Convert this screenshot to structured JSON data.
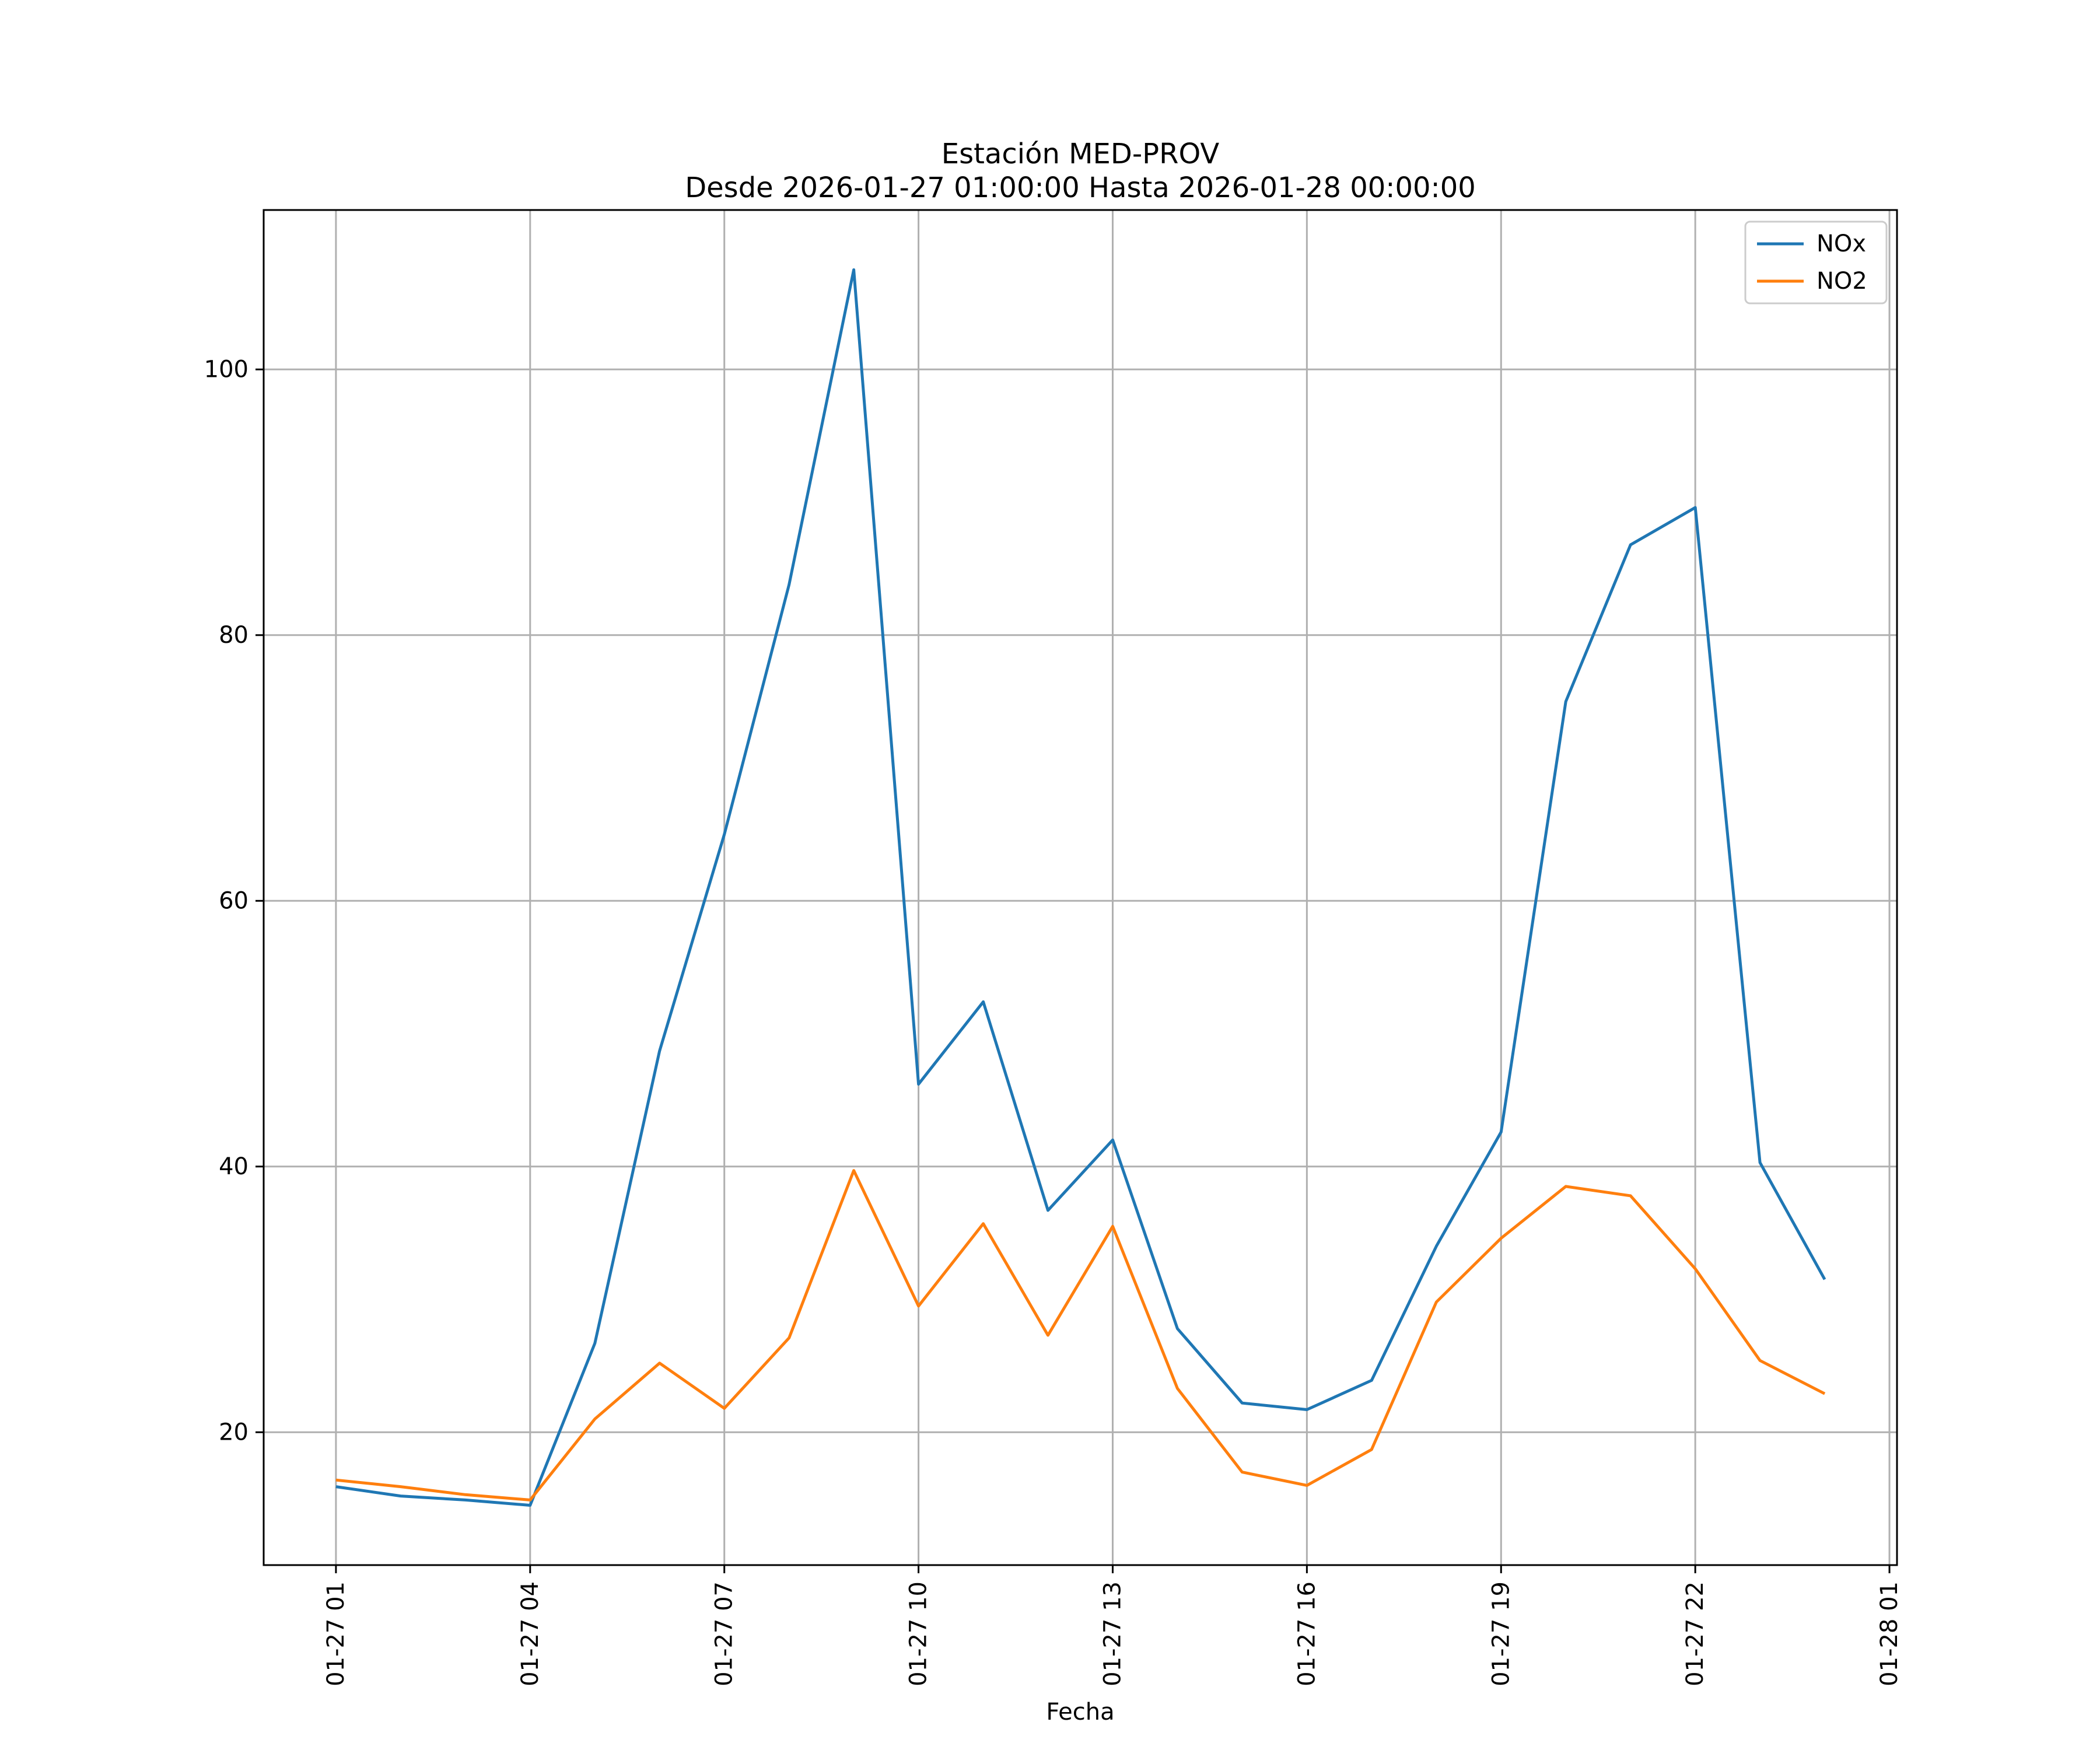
{
  "chart_data": {
    "type": "line",
    "title": "Estación MED-PROV",
    "subtitle": "Desde 2026-01-27 01:00:00 Hasta 2026-01-28 00:00:00",
    "xlabel": "Fecha",
    "ylabel": "",
    "x": [
      "2026-01-27 01:00",
      "2026-01-27 02:00",
      "2026-01-27 03:00",
      "2026-01-27 04:00",
      "2026-01-27 05:00",
      "2026-01-27 06:00",
      "2026-01-27 07:00",
      "2026-01-27 08:00",
      "2026-01-27 09:00",
      "2026-01-27 10:00",
      "2026-01-27 11:00",
      "2026-01-27 12:00",
      "2026-01-27 13:00",
      "2026-01-27 14:00",
      "2026-01-27 15:00",
      "2026-01-27 16:00",
      "2026-01-27 17:00",
      "2026-01-27 18:00",
      "2026-01-27 19:00",
      "2026-01-27 20:00",
      "2026-01-27 21:00",
      "2026-01-27 22:00",
      "2026-01-27 23:00",
      "2026-01-28 00:00"
    ],
    "xticks": [
      "2026-01-27 01:00",
      "2026-01-27 04:00",
      "2026-01-27 07:00",
      "2026-01-27 10:00",
      "2026-01-27 13:00",
      "2026-01-27 16:00",
      "2026-01-27 19:00",
      "2026-01-27 22:00",
      "2026-01-28 01:00"
    ],
    "xtick_labels": [
      "01-27 01",
      "01-27 04",
      "01-27 07",
      "01-27 10",
      "01-27 13",
      "01-27 16",
      "01-27 19",
      "01-27 22",
      "01-28 01"
    ],
    "xlim": [
      "2026-01-26 23:53",
      "2026-01-28 01:07"
    ],
    "ylim": [
      10,
      112
    ],
    "yticks": [
      20,
      40,
      60,
      80,
      100
    ],
    "ytick_labels": [
      "20",
      "40",
      "60",
      "80",
      "100"
    ],
    "grid": true,
    "legend": "top-right",
    "series": [
      {
        "name": "NOx",
        "color": "#1f77b4",
        "values": [
          15.9,
          15.2,
          14.9,
          14.5,
          26.7,
          48.7,
          65.0,
          83.8,
          107.5,
          46.2,
          52.4,
          36.7,
          42.0,
          27.8,
          22.2,
          21.7,
          23.9,
          34.0,
          42.6,
          75.0,
          86.8,
          89.6,
          40.3,
          31.5
        ]
      },
      {
        "name": "NO2",
        "color": "#ff7f0e",
        "values": [
          16.4,
          15.9,
          15.3,
          14.9,
          21.0,
          25.2,
          21.8,
          27.1,
          39.7,
          29.5,
          35.7,
          27.3,
          35.5,
          23.3,
          17.0,
          16.0,
          18.7,
          29.8,
          34.6,
          38.5,
          37.8,
          32.3,
          25.4,
          22.9
        ]
      }
    ]
  }
}
